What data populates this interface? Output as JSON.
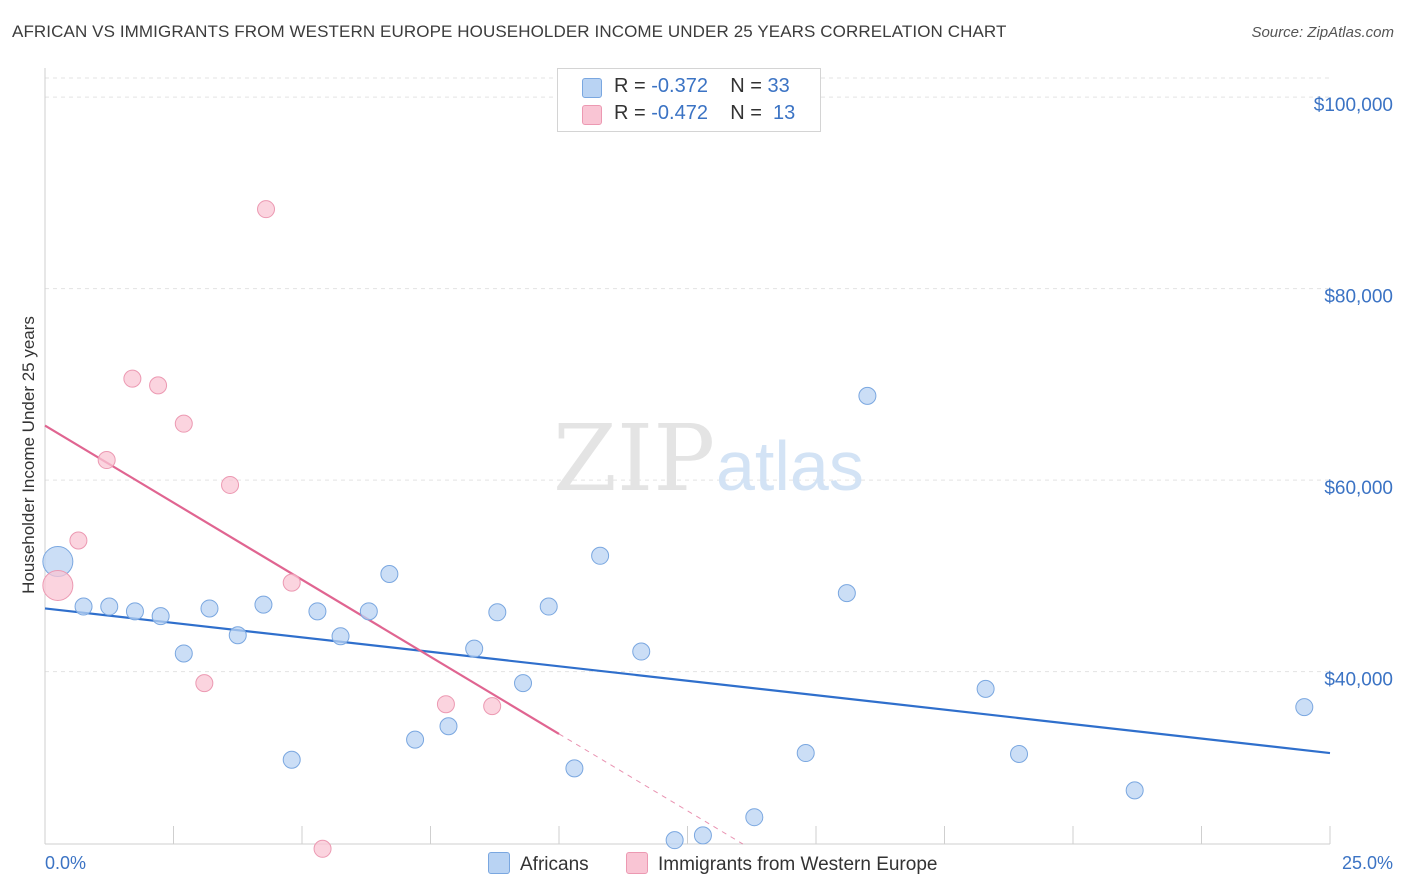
{
  "title": "AFRICAN VS IMMIGRANTS FROM WESTERN EUROPE HOUSEHOLDER INCOME UNDER 25 YEARS CORRELATION CHART",
  "source": "Source: ZipAtlas.com",
  "watermark": {
    "zip": "ZIP",
    "atlas": "atlas"
  },
  "legend": {
    "africans": {
      "r_label": "R =",
      "r_value": "-0.372",
      "n_label": "N =",
      "n_value": "33"
    },
    "immigrants": {
      "r_label": "R =",
      "r_value": "-0.472",
      "n_label": "N =",
      "n_value": "13"
    }
  },
  "bottom_legend": {
    "africans": "Africans",
    "immigrants": "Immigrants from Western Europe"
  },
  "colors": {
    "africans_fill": "#b9d3f3",
    "africans_stroke": "#7aa7e0",
    "africans_line": "#2f6fcc",
    "immigrants_fill": "#f9c5d4",
    "immigrants_stroke": "#ec99b2",
    "immigrants_line": "#e06591"
  },
  "chart_data": {
    "type": "scatter",
    "ylabel": "Householder Income Under 25 years",
    "x_tick_labels": [
      "0.0%",
      "25.0%"
    ],
    "y_tick_labels": [
      "$100,000",
      "$80,000",
      "$60,000",
      "$40,000"
    ],
    "xlim": [
      0,
      25
    ],
    "ylim": [
      22000,
      102000
    ],
    "y_ticks": [
      100000,
      80000,
      60000,
      40000
    ],
    "series": [
      {
        "name": "Africans",
        "r": -0.372,
        "n": 33,
        "points": [
          {
            "x": 0.25,
            "y": 51500,
            "big": true
          },
          {
            "x": 0.75,
            "y": 46800
          },
          {
            "x": 1.25,
            "y": 46800
          },
          {
            "x": 1.75,
            "y": 46300
          },
          {
            "x": 2.25,
            "y": 45800
          },
          {
            "x": 2.7,
            "y": 41900
          },
          {
            "x": 3.2,
            "y": 46600
          },
          {
            "x": 3.75,
            "y": 43800
          },
          {
            "x": 4.25,
            "y": 47000
          },
          {
            "x": 4.8,
            "y": 30800
          },
          {
            "x": 5.3,
            "y": 46300
          },
          {
            "x": 5.75,
            "y": 43700
          },
          {
            "x": 6.3,
            "y": 46300
          },
          {
            "x": 6.7,
            "y": 50200
          },
          {
            "x": 7.2,
            "y": 32900
          },
          {
            "x": 7.85,
            "y": 34300
          },
          {
            "x": 8.35,
            "y": 42400
          },
          {
            "x": 8.8,
            "y": 46200
          },
          {
            "x": 9.3,
            "y": 38800
          },
          {
            "x": 9.8,
            "y": 46800
          },
          {
            "x": 10.3,
            "y": 29900
          },
          {
            "x": 10.8,
            "y": 52100
          },
          {
            "x": 11.6,
            "y": 42100
          },
          {
            "x": 12.25,
            "y": 22400
          },
          {
            "x": 12.8,
            "y": 22900
          },
          {
            "x": 13.8,
            "y": 24800
          },
          {
            "x": 14.8,
            "y": 31500
          },
          {
            "x": 15.6,
            "y": 48200
          },
          {
            "x": 16.0,
            "y": 68800
          },
          {
            "x": 18.3,
            "y": 38200
          },
          {
            "x": 18.95,
            "y": 31400
          },
          {
            "x": 21.2,
            "y": 27600
          },
          {
            "x": 24.5,
            "y": 36300
          }
        ],
        "trend": {
          "x0": 0,
          "y0": 46600,
          "x1": 25,
          "y1": 31500
        }
      },
      {
        "name": "Immigrants from Western Europe",
        "r": -0.472,
        "n": 13,
        "points": [
          {
            "x": 0.25,
            "y": 49000,
            "big": true
          },
          {
            "x": 0.65,
            "y": 53700
          },
          {
            "x": 1.2,
            "y": 62100
          },
          {
            "x": 1.7,
            "y": 70600
          },
          {
            "x": 2.2,
            "y": 69900
          },
          {
            "x": 2.7,
            "y": 65900
          },
          {
            "x": 3.1,
            "y": 38800
          },
          {
            "x": 3.6,
            "y": 59500
          },
          {
            "x": 4.3,
            "y": 88300
          },
          {
            "x": 4.8,
            "y": 49300
          },
          {
            "x": 5.4,
            "y": 21500
          },
          {
            "x": 7.8,
            "y": 36600
          },
          {
            "x": 8.7,
            "y": 36400
          }
        ],
        "trend": {
          "x0": 0,
          "y0": 65700,
          "x1": 10,
          "y1": 33500,
          "dash_x1": 14.2,
          "dash_y1": 20000
        }
      }
    ]
  }
}
